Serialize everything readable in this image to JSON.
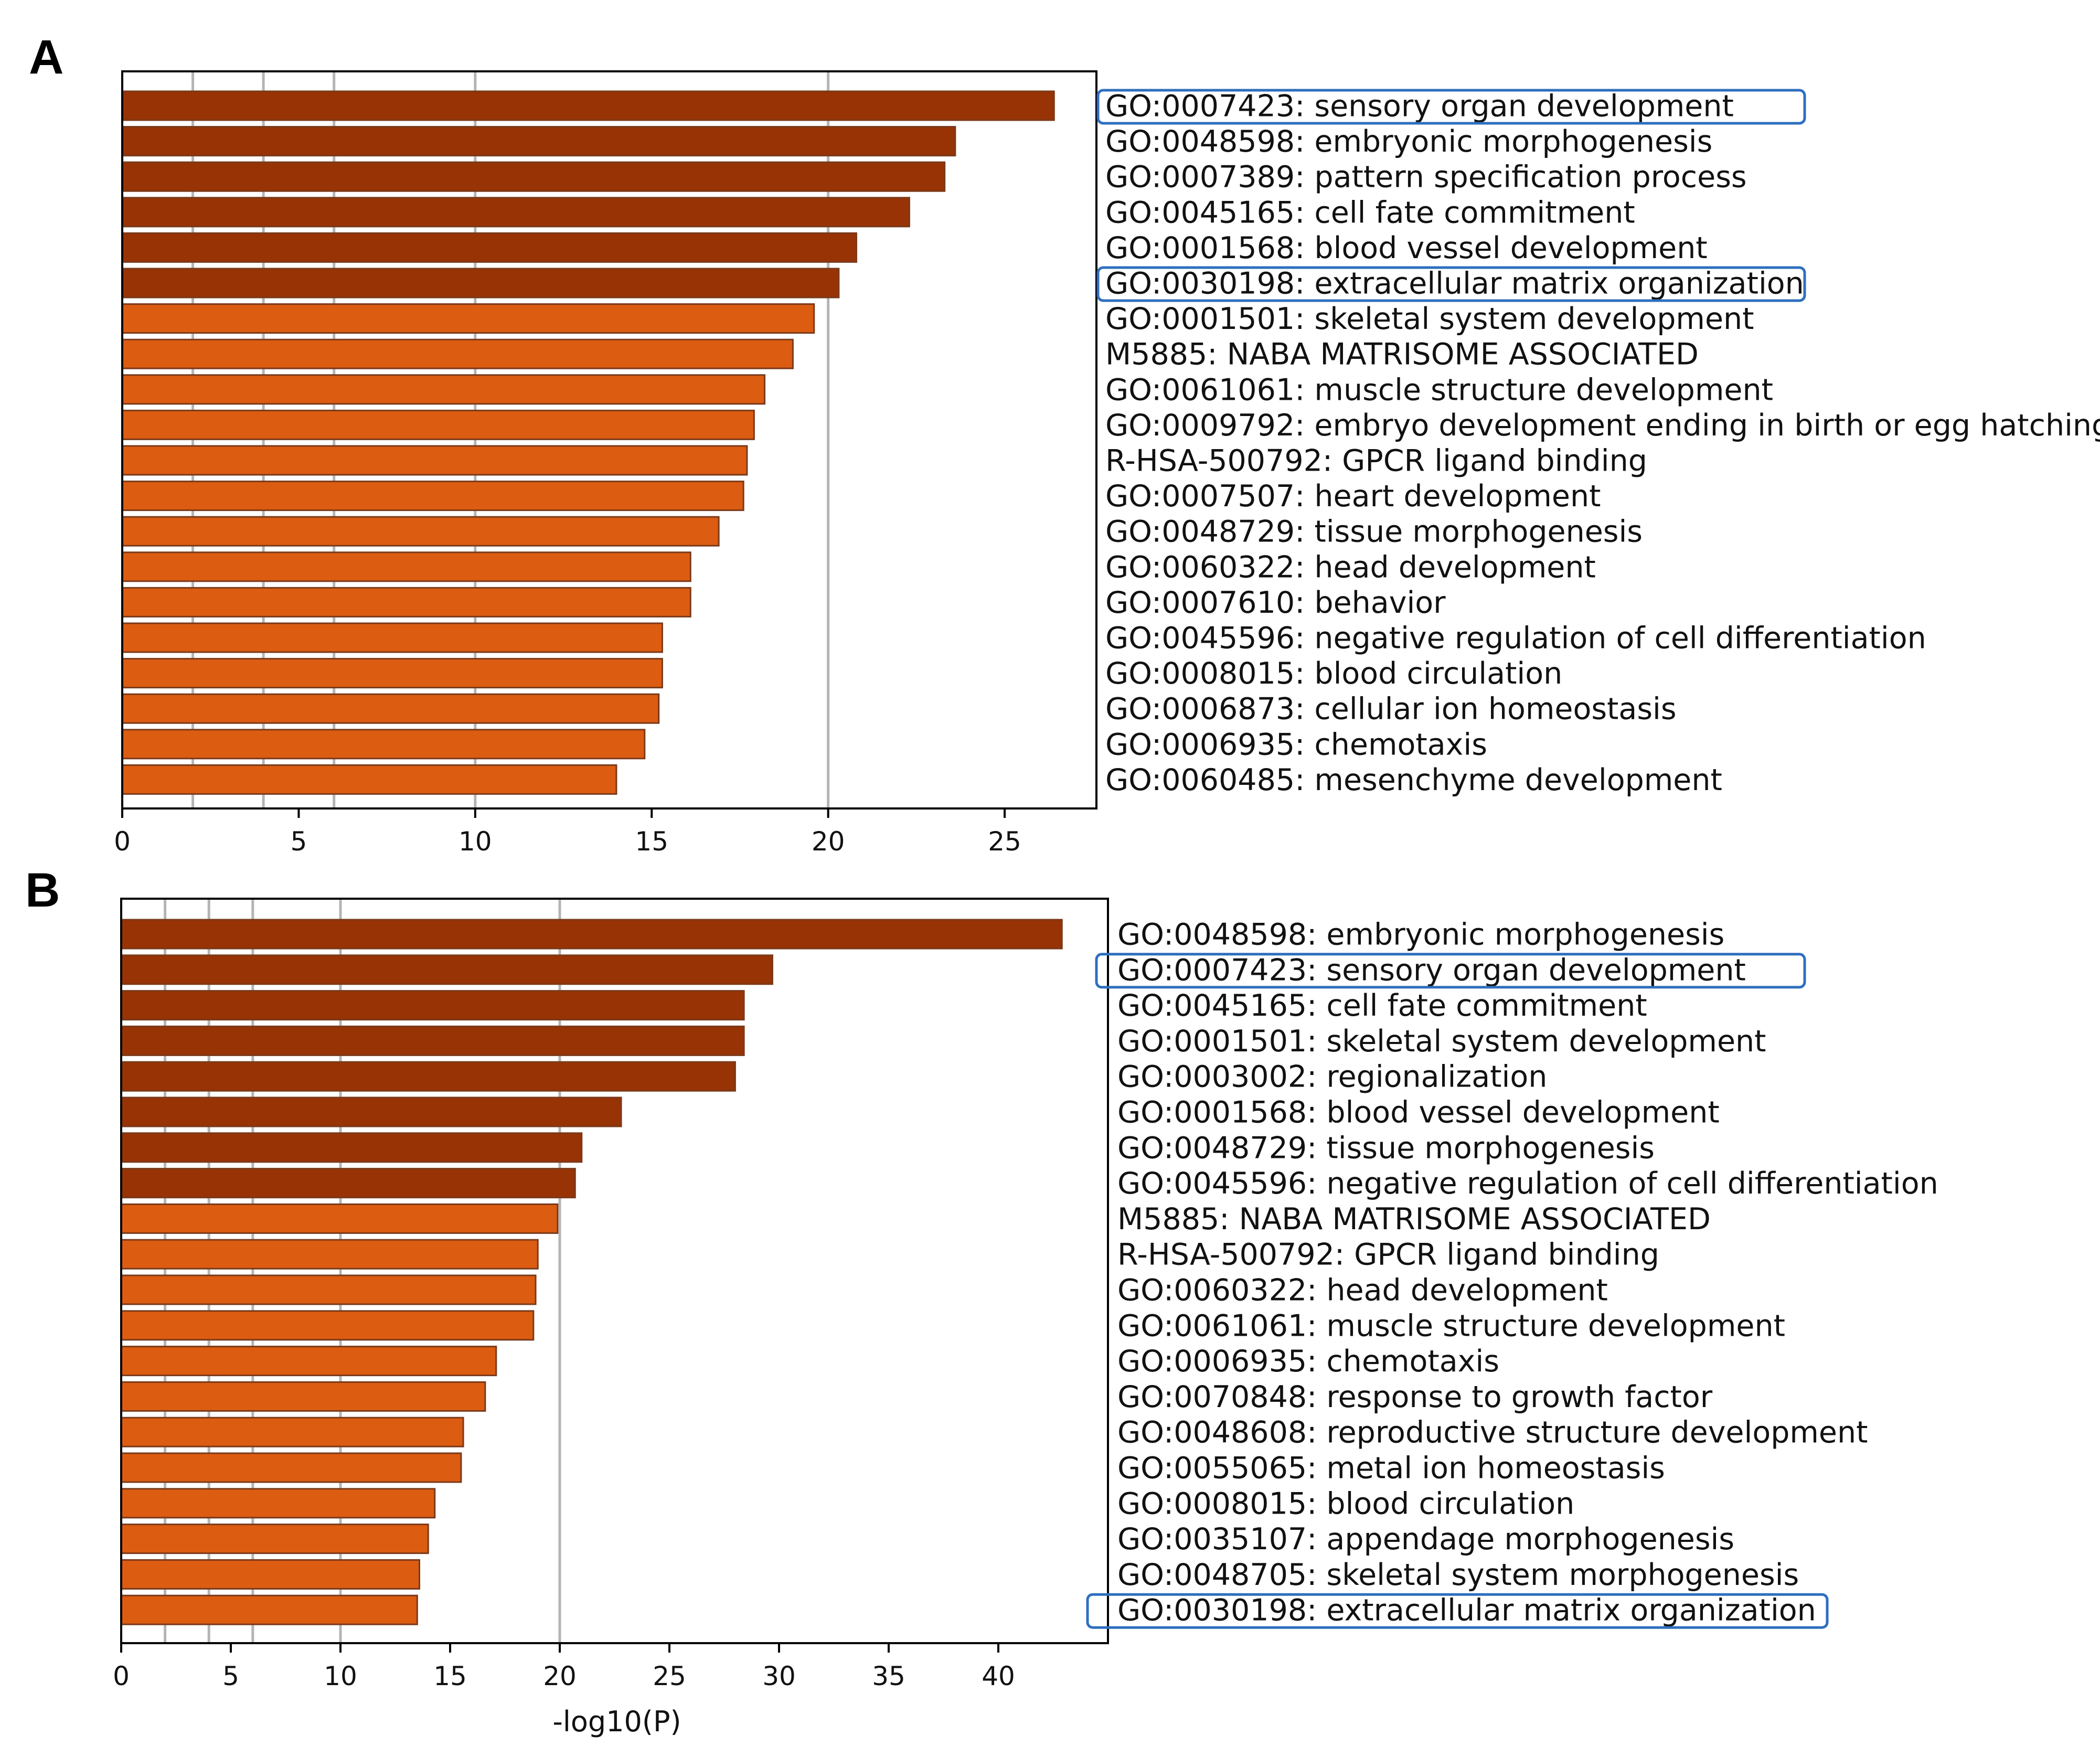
{
  "colors": {
    "top_bar": "#983305",
    "rest_bar": "#dc5c12",
    "bar_edge": "#7a3a1a",
    "gridline": "#b4b4b4",
    "highlight_box": "#2e6fbf",
    "axes": "#000000"
  },
  "chart_data": [
    {
      "panel": "A",
      "type": "bar",
      "orientation": "horizontal",
      "xlabel": "",
      "xlim": [
        0,
        27.6
      ],
      "xticks": [
        0,
        5,
        10,
        15,
        20,
        25
      ],
      "gridlines_at": [
        2,
        4,
        6,
        10,
        20
      ],
      "top_colored_count": 6,
      "categories": [
        "GO:0007423: sensory organ development",
        "GO:0048598: embryonic morphogenesis",
        "GO:0007389: pattern specification process",
        "GO:0045165: cell fate commitment",
        "GO:0001568: blood vessel development",
        "GO:0030198: extracellular matrix organization",
        "GO:0001501: skeletal system development",
        "M5885: NABA MATRISOME ASSOCIATED",
        "GO:0061061: muscle structure development",
        "GO:0009792: embryo development ending in birth or egg hatching",
        "R-HSA-500792: GPCR ligand binding",
        "GO:0007507: heart development",
        "GO:0048729: tissue morphogenesis",
        "GO:0060322: head development",
        "GO:0007610: behavior",
        "GO:0045596: negative regulation of cell differentiation",
        "GO:0008015: blood circulation",
        "GO:0006873: cellular ion homeostasis",
        "GO:0006935: chemotaxis",
        "GO:0060485: mesenchyme development"
      ],
      "values": [
        26.4,
        23.6,
        23.3,
        22.3,
        20.8,
        20.3,
        19.6,
        19.0,
        18.2,
        17.9,
        17.7,
        17.6,
        16.9,
        16.1,
        16.1,
        15.3,
        15.3,
        15.2,
        14.8,
        14.0
      ],
      "highlighted": [
        0,
        5
      ]
    },
    {
      "panel": "B",
      "type": "bar",
      "orientation": "horizontal",
      "xlabel": "-log10(P)",
      "xlim": [
        0,
        45
      ],
      "xticks": [
        0,
        5,
        10,
        15,
        20,
        25,
        30,
        35,
        40
      ],
      "gridlines_at": [
        2,
        4,
        6,
        10,
        20
      ],
      "top_colored_count": 8,
      "categories": [
        "GO:0048598: embryonic morphogenesis",
        "GO:0007423: sensory organ development",
        "GO:0045165: cell fate commitment",
        "GO:0001501: skeletal system development",
        "GO:0003002: regionalization",
        "GO:0001568: blood vessel development",
        "GO:0048729: tissue morphogenesis",
        "GO:0045596: negative regulation of cell differentiation",
        "M5885: NABA MATRISOME ASSOCIATED",
        "R-HSA-500792: GPCR ligand binding",
        "GO:0060322: head development",
        "GO:0061061: muscle structure development",
        "GO:0006935: chemotaxis",
        "GO:0070848: response to growth factor",
        "GO:0048608: reproductive structure development",
        "GO:0055065: metal ion homeostasis",
        "GO:0008015: blood circulation",
        "GO:0035107: appendage morphogenesis",
        "GO:0048705: skeletal system morphogenesis",
        "GO:0030198: extracellular matrix organization"
      ],
      "values": [
        42.9,
        29.7,
        28.4,
        28.4,
        28.0,
        22.8,
        21.0,
        20.7,
        19.9,
        19.0,
        18.9,
        18.8,
        17.1,
        16.6,
        15.6,
        15.5,
        14.3,
        14.0,
        13.6,
        13.5
      ],
      "highlighted": [
        1,
        19
      ]
    }
  ]
}
